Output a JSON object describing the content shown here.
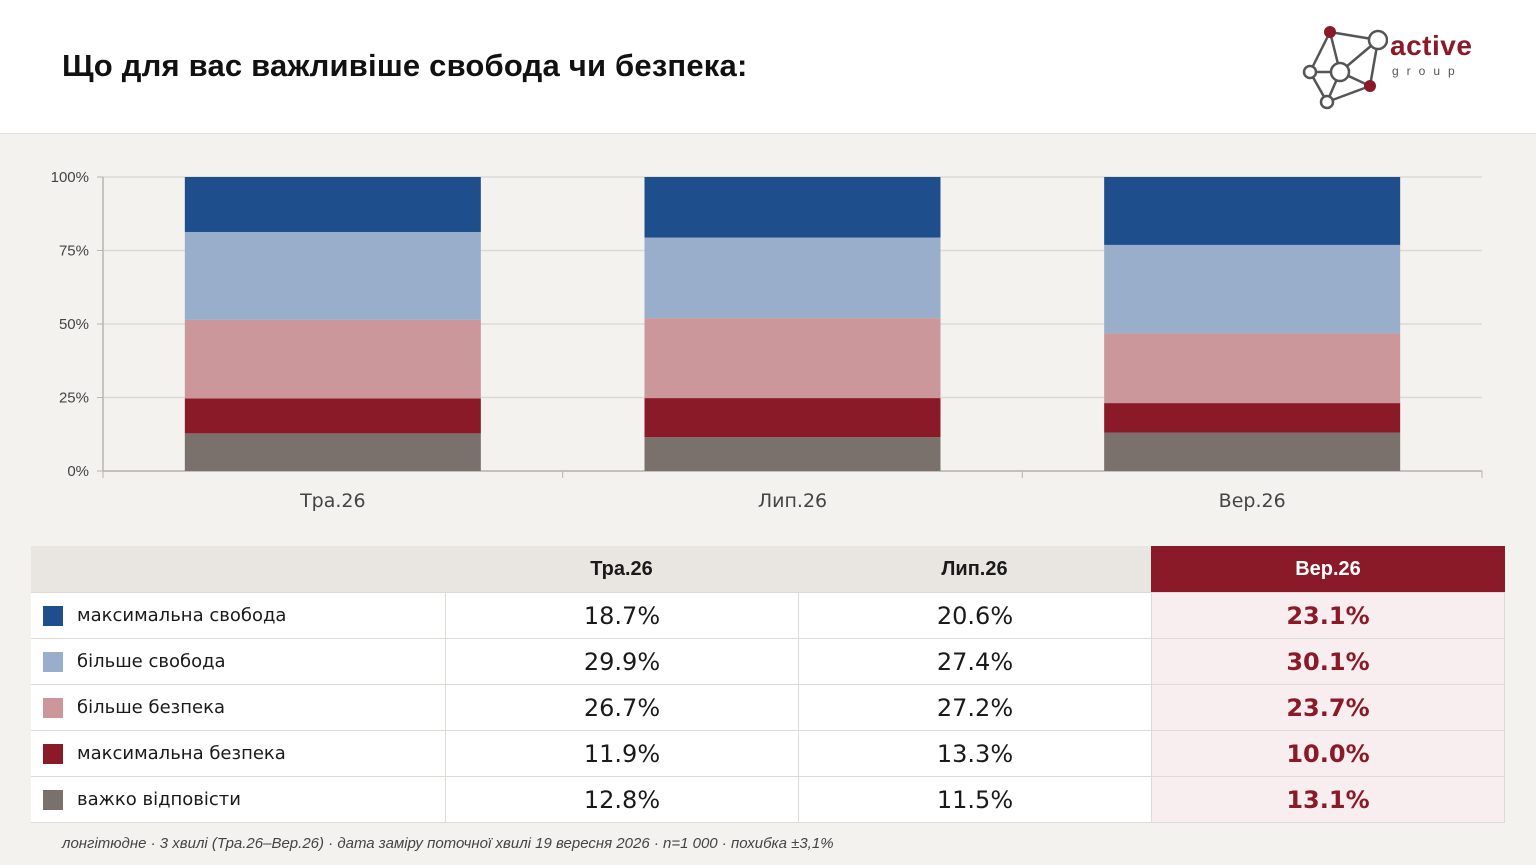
{
  "title": "Що для вас важливіше свобода чи безпека:",
  "logo": {
    "word": "active",
    "sub": "group"
  },
  "colors": {
    "max_freedom": "#1f4e8c",
    "more_freedom": "#99aecb",
    "more_security": "#cb979b",
    "max_security": "#8b1a29",
    "hard_to_say": "#7a716c",
    "accent": "#8b1a29"
  },
  "chart_data": {
    "type": "bar",
    "stacked": true,
    "categories": [
      "Тра.26",
      "Лип.26",
      "Вер.26"
    ],
    "y_ticks": [
      "0%",
      "25%",
      "50%",
      "75%",
      "100%"
    ],
    "ylim": [
      0,
      100
    ],
    "grid": true,
    "series": [
      {
        "name": "важко відповісти",
        "color": "#7a716c",
        "values": [
          12.8,
          11.5,
          13.1
        ]
      },
      {
        "name": "максимальна безпека",
        "color": "#8b1a29",
        "values": [
          11.9,
          13.3,
          10.0
        ]
      },
      {
        "name": "більше безпека",
        "color": "#cb979b",
        "values": [
          26.7,
          27.2,
          23.7
        ]
      },
      {
        "name": "більше свобода",
        "color": "#99aecb",
        "values": [
          29.9,
          27.4,
          30.1
        ]
      },
      {
        "name": "максимальна свобода",
        "color": "#1f4e8c",
        "values": [
          18.7,
          20.6,
          23.1
        ]
      }
    ]
  },
  "table": {
    "headers": [
      "Тра.26",
      "Лип.26",
      "Вер.26"
    ],
    "rows": [
      {
        "label": "максимальна свобода",
        "color": "#1f4e8c",
        "values": [
          "18.7%",
          "20.6%",
          "23.1%"
        ]
      },
      {
        "label": "більше свобода",
        "color": "#99aecb",
        "values": [
          "29.9%",
          "27.4%",
          "30.1%"
        ]
      },
      {
        "label": "більше безпека",
        "color": "#cb979b",
        "values": [
          "26.7%",
          "27.2%",
          "23.7%"
        ]
      },
      {
        "label": "максимальна безпека",
        "color": "#8b1a29",
        "values": [
          "11.9%",
          "13.3%",
          "10.0%"
        ]
      },
      {
        "label": "важко відповісти",
        "color": "#7a716c",
        "values": [
          "12.8%",
          "11.5%",
          "13.1%"
        ]
      }
    ]
  },
  "footnote": "лонгітюдне · 3 хвилі (Тра.26–Вер.26) · дата заміру поточної хвилі 19 вересня 2026 · n=1 000 · похибка ±3,1%"
}
